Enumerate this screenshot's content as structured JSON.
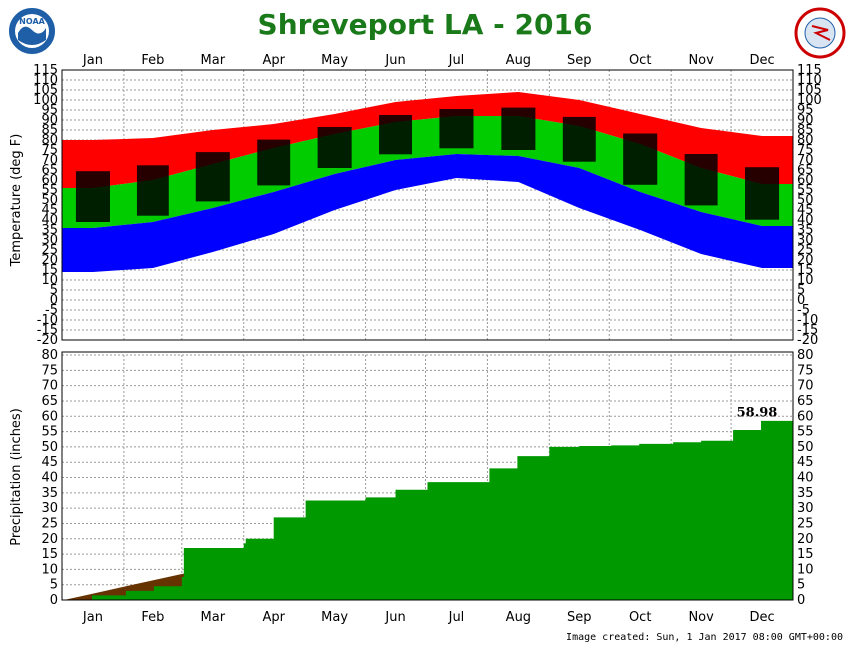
{
  "title": "Shreveport LA - 2016",
  "created": "Image created: Sun, 1 Jan 2017 08:00 GMT+00:00",
  "logos": {
    "left": "NOAA",
    "right": "NATIONAL WEATHER SERVICE"
  },
  "colors": {
    "title": "#1a7a1a",
    "record_high": "#ff0000",
    "record_low": "#0000ff",
    "normal_range": "#00cc00",
    "observed": "#000000",
    "precip_observed": "#009900",
    "precip_normal": "#663300"
  },
  "chart_data": [
    {
      "type": "area",
      "ylabel": "Temperature (deg F)",
      "ylim": [
        -20,
        115
      ],
      "yticks": [
        115,
        110,
        105,
        100,
        95,
        90,
        85,
        80,
        75,
        70,
        65,
        60,
        55,
        50,
        45,
        40,
        35,
        30,
        25,
        20,
        15,
        10,
        5,
        0,
        -5,
        -10,
        -15,
        -20
      ],
      "months": [
        "Jan",
        "Feb",
        "Mar",
        "Apr",
        "May",
        "Jun",
        "Jul",
        "Aug",
        "Sep",
        "Oct",
        "Nov",
        "Dec"
      ],
      "x": [
        "Jan",
        "Feb",
        "Mar",
        "Apr",
        "May",
        "Jun",
        "Jul",
        "Aug",
        "Sep",
        "Oct",
        "Nov",
        "Dec"
      ],
      "series": [
        {
          "values": [
            80,
            81,
            85,
            88,
            93,
            99,
            102,
            104,
            100,
            93,
            86,
            82
          ]
        },
        {
          "values": [
            56,
            60,
            68,
            76,
            83,
            89,
            92,
            92,
            87,
            78,
            66,
            58
          ]
        },
        {
          "values": [
            36,
            39,
            46,
            54,
            63,
            70,
            73,
            72,
            66,
            54,
            44,
            37
          ]
        },
        {
          "values": [
            14,
            16,
            24,
            33,
            45,
            55,
            61,
            59,
            46,
            35,
            23,
            16
          ]
        }
      ]
    },
    {
      "type": "area",
      "ylabel": "Precipitation (inches)",
      "ylim": [
        0,
        80
      ],
      "yticks": [
        80,
        75,
        70,
        65,
        60,
        55,
        50,
        45,
        40,
        35,
        30,
        25,
        20,
        15,
        10,
        5,
        0
      ],
      "annotation": "58.98",
      "x": [
        "Jan 1",
        "Jan 15",
        "Feb 1",
        "Feb 15",
        "Feb 29",
        "Mar 1",
        "Mar 31",
        "Apr 1",
        "Apr 15",
        "May 1",
        "May 31",
        "Jun 15",
        "Jul 1",
        "Jul 15",
        "Aug 1",
        "Aug 15",
        "Aug 31",
        "Sep 15",
        "Oct 1",
        "Oct 15",
        "Nov 1",
        "Nov 15",
        "Dec 1",
        "Dec 15",
        "Dec 31"
      ],
      "series": [
        {
          "values": [
            0,
            1.5,
            3,
            4.5,
            7.5,
            17,
            18.5,
            20,
            27,
            32.5,
            33.5,
            36,
            38.5,
            38.5,
            43,
            47,
            50,
            50.3,
            50.5,
            51,
            51.5,
            52,
            55.5,
            58.5,
            58.98
          ]
        },
        {
          "values": [
            0,
            2,
            4.5,
            6.5,
            8.5,
            8.6,
            12,
            12.2,
            14,
            17,
            19.5,
            21,
            22,
            23.5,
            25,
            26,
            27,
            28.5,
            30,
            31,
            33,
            34.5,
            35.5,
            37.5,
            39
          ]
        }
      ]
    }
  ]
}
